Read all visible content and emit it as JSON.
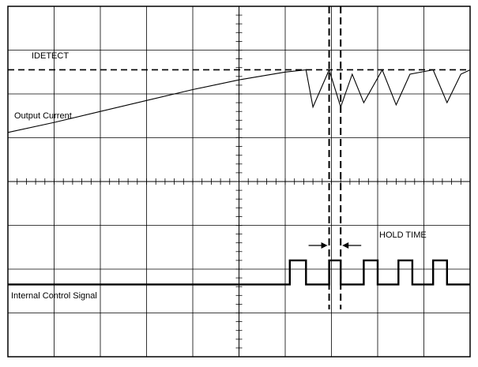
{
  "chart_data": {
    "type": "line",
    "title": "",
    "xlabel": "",
    "ylabel": "",
    "grid": true,
    "grid_divisions": {
      "x": 10,
      "y": 8
    },
    "xlim": [
      0,
      10
    ],
    "ylim": [
      0,
      8
    ],
    "labels": {
      "idetect": "IDETECT",
      "output_current": "Output Current",
      "internal_control_signal": "Internal Control Signal",
      "hold_time": "HOLD TIME"
    },
    "idetect_level": 6.55,
    "hold_time_markers": [
      6.95,
      7.2
    ],
    "series": [
      {
        "name": "Output Current",
        "x": [
          0,
          1.0,
          2.0,
          3.0,
          4.0,
          5.0,
          6.0,
          6.45,
          6.6,
          6.95,
          7.2,
          7.45,
          7.7,
          8.1,
          8.4,
          8.7,
          9.2,
          9.5,
          9.8,
          10.0
        ],
        "y": [
          5.12,
          5.35,
          5.6,
          5.85,
          6.1,
          6.32,
          6.5,
          6.55,
          5.7,
          6.55,
          5.7,
          6.45,
          5.8,
          6.55,
          5.75,
          6.45,
          6.55,
          5.8,
          6.45,
          6.55
        ]
      },
      {
        "name": "Internal Control Signal",
        "x": [
          0,
          6.1,
          6.1,
          6.45,
          6.45,
          6.95,
          6.95,
          7.2,
          7.2,
          7.7,
          7.7,
          8.0,
          8.0,
          8.45,
          8.45,
          8.75,
          8.75,
          9.2,
          9.2,
          9.5,
          9.5,
          10.0
        ],
        "y": [
          1.65,
          1.65,
          2.2,
          2.2,
          1.65,
          1.65,
          2.2,
          2.2,
          1.65,
          1.65,
          2.2,
          2.2,
          1.65,
          1.65,
          2.2,
          2.2,
          1.65,
          1.65,
          2.2,
          2.2,
          1.65,
          1.65
        ]
      }
    ]
  }
}
